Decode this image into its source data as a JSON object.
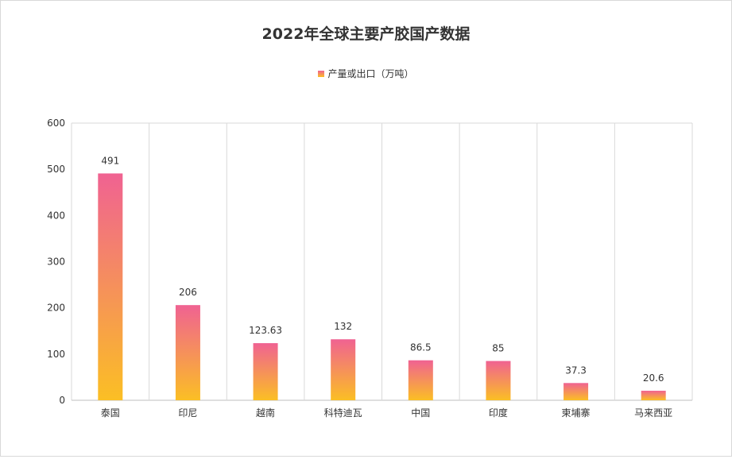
{
  "chart_data": {
    "type": "bar",
    "title": "2022年全球主要产胶国产数据",
    "categories": [
      "泰国",
      "印尼",
      "越南",
      "科特迪瓦",
      "中国",
      "印度",
      "柬埔寨",
      "马来西亚"
    ],
    "series": [
      {
        "name": "产量或出口（万吨）",
        "values": [
          491,
          206,
          123.63,
          132,
          86.5,
          85,
          37.3,
          20.6
        ]
      }
    ],
    "data_labels": [
      "491",
      "206",
      "123.63",
      "132",
      "86.5",
      "85",
      "37.3",
      "20.6"
    ],
    "ylim": [
      0,
      600
    ],
    "yticks": [
      "0",
      "100",
      "200",
      "300",
      "400",
      "500",
      "600"
    ],
    "grid": "vertical category separators",
    "legend_position": "top-center",
    "bar_gradient": {
      "top": "#f06292",
      "bottom": "#fbbf24"
    }
  }
}
